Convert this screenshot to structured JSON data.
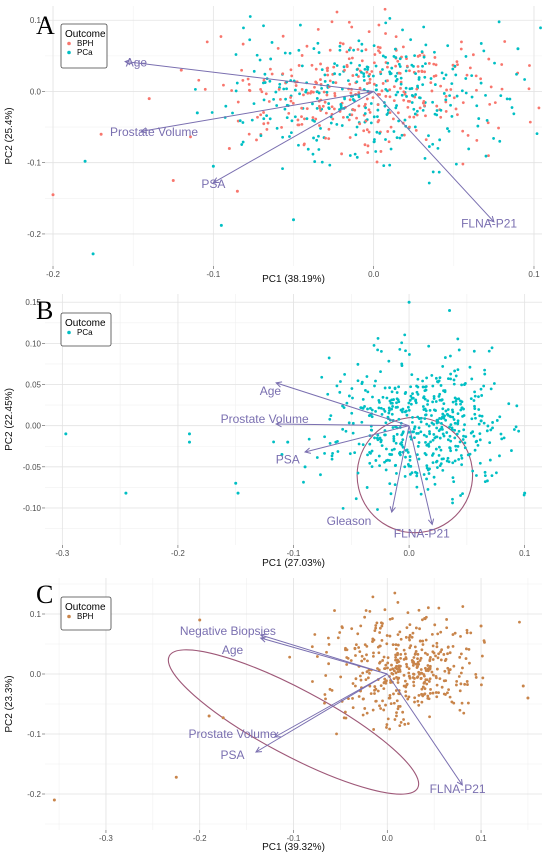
{
  "chart_data": [
    {
      "type": "scatter",
      "panel_label": "A",
      "xlabel": "PC1 (38.19%)",
      "ylabel": "PC2 (25.4%)",
      "xlim": [
        -0.205,
        0.105
      ],
      "ylim": [
        -0.245,
        0.12
      ],
      "xticks": [
        -0.2,
        -0.1,
        0.0,
        0.1
      ],
      "yticks": [
        -0.2,
        -0.1,
        0.0,
        0.1
      ],
      "xtick_labels": [
        "-0.2",
        "-0.1",
        "0.0",
        "0.1"
      ],
      "ytick_labels": [
        "-0.2",
        "-0.1",
        "0.0",
        "0.1"
      ],
      "grid": true,
      "legend": {
        "title": "Outcome",
        "placement": "top-left",
        "entries": [
          {
            "name": "BPH",
            "color": "#f8766d"
          },
          {
            "name": "PCa",
            "color": "#00bfc4"
          }
        ]
      },
      "cloud": {
        "cx": 0.0,
        "cy": 0.0,
        "sx": 0.045,
        "sy": 0.045,
        "n": 650
      },
      "series": [
        {
          "name": "BPH",
          "color": "#f8766d",
          "points": [
            [
              -0.2,
              -0.145
            ],
            [
              -0.125,
              -0.125
            ],
            [
              -0.085,
              -0.14
            ],
            [
              -0.14,
              -0.01
            ],
            [
              -0.17,
              -0.06
            ],
            [
              -0.09,
              -0.08
            ],
            [
              -0.12,
              0.03
            ]
          ]
        },
        {
          "name": "PCa",
          "color": "#00bfc4",
          "points": [
            [
              -0.18,
              -0.098
            ],
            [
              -0.175,
              -0.228
            ],
            [
              -0.1,
              -0.105
            ],
            [
              -0.095,
              -0.188
            ],
            [
              -0.05,
              -0.18
            ],
            [
              -0.11,
              -0.03
            ],
            [
              0.09,
              0.06
            ]
          ]
        }
      ],
      "vectors": [
        {
          "label": "Age",
          "x": -0.155,
          "y": 0.042,
          "lx": -0.148,
          "ly": 0.041
        },
        {
          "label": "Prostate Volume",
          "x": -0.145,
          "y": -0.056,
          "lx": -0.137,
          "ly": -0.057
        },
        {
          "label": "PSA",
          "x": -0.1,
          "y": -0.128,
          "lx": -0.1,
          "ly": -0.13
        },
        {
          "label": "FLNA-P21",
          "x": 0.075,
          "y": -0.183,
          "lx": 0.072,
          "ly": -0.185
        }
      ]
    },
    {
      "type": "scatter",
      "panel_label": "B",
      "xlabel": "PC1 (27.03%)",
      "ylabel": "PC2 (22.45%)",
      "xlim": [
        -0.315,
        0.115
      ],
      "ylim": [
        -0.145,
        0.16
      ],
      "xticks": [
        -0.3,
        -0.2,
        -0.1,
        0.0,
        0.1
      ],
      "yticks": [
        -0.1,
        -0.05,
        0.0,
        0.05,
        0.1,
        0.15
      ],
      "xtick_labels": [
        "-0.3",
        "-0.2",
        "-0.1",
        "0.0",
        "0.1"
      ],
      "ytick_labels": [
        "-0.10",
        "-0.05",
        "0.00",
        "0.05",
        "0.10",
        "0.15"
      ],
      "grid": true,
      "legend": {
        "title": "Outcome",
        "placement": "top-left",
        "entries": [
          {
            "name": "PCa",
            "color": "#00bfc4"
          }
        ]
      },
      "cloud": {
        "cx": 0.01,
        "cy": 0.0,
        "sx": 0.035,
        "sy": 0.04,
        "n": 520
      },
      "series": [
        {
          "name": "PCa",
          "color": "#00bfc4",
          "points": [
            [
              -0.297,
              -0.01
            ],
            [
              -0.245,
              -0.082
            ],
            [
              -0.19,
              -0.02
            ],
            [
              -0.19,
              -0.01
            ],
            [
              -0.15,
              -0.07
            ],
            [
              -0.148,
              -0.082
            ],
            [
              -0.11,
              -0.035
            ],
            [
              -0.105,
              -0.02
            ],
            [
              -0.09,
              -0.05
            ],
            [
              0.0,
              0.15
            ],
            [
              0.035,
              0.14
            ],
            [
              0.1,
              -0.082
            ]
          ]
        }
      ],
      "ellipse": {
        "cx": 0.005,
        "cy": -0.06,
        "rx": 0.05,
        "ry": 0.07,
        "angle": -35,
        "color": "#9e5878"
      },
      "vectors": [
        {
          "label": "Age",
          "x": -0.115,
          "y": 0.052,
          "lx": -0.12,
          "ly": 0.042
        },
        {
          "label": "Prostate Volume",
          "x": -0.115,
          "y": 0.002,
          "lx": -0.125,
          "ly": 0.008
        },
        {
          "label": "PSA",
          "x": -0.09,
          "y": -0.032,
          "lx": -0.105,
          "ly": -0.041
        },
        {
          "label": "Gleason",
          "x": -0.015,
          "y": -0.105,
          "lx": -0.052,
          "ly": -0.116
        },
        {
          "label": "FLNA-P21",
          "x": 0.02,
          "y": -0.12,
          "lx": 0.011,
          "ly": -0.131
        }
      ]
    },
    {
      "type": "scatter",
      "panel_label": "C",
      "xlabel": "PC1 (39.32%)",
      "ylabel": "PC2 (23.3%)",
      "xlim": [
        -0.365,
        0.165
      ],
      "ylim": [
        -0.26,
        0.16
      ],
      "xticks": [
        -0.3,
        -0.2,
        -0.1,
        0.0,
        0.1
      ],
      "yticks": [
        -0.2,
        -0.1,
        0.0,
        0.1
      ],
      "xtick_labels": [
        "-0.3",
        "-0.2",
        "-0.1",
        "0.0",
        "0.1"
      ],
      "ytick_labels": [
        "-0.2",
        "-0.1",
        "0.0",
        "0.1"
      ],
      "grid": true,
      "legend": {
        "title": "Outcome",
        "placement": "top-left",
        "entries": [
          {
            "name": "BPH",
            "color": "#c8844a"
          }
        ]
      },
      "cloud": {
        "cx": 0.02,
        "cy": 0.01,
        "sx": 0.04,
        "sy": 0.045,
        "n": 430
      },
      "series": [
        {
          "name": "BPH",
          "color": "#c8844a",
          "points": [
            [
              -0.355,
              -0.21
            ],
            [
              -0.225,
              -0.172
            ],
            [
              -0.19,
              -0.07
            ],
            [
              -0.175,
              -0.073
            ],
            [
              -0.2,
              0.09
            ],
            [
              0.145,
              -0.02
            ],
            [
              0.15,
              -0.04
            ],
            [
              0.1,
              0.08
            ]
          ]
        }
      ],
      "ellipse": {
        "cx": -0.1,
        "cy": -0.08,
        "rx": 0.15,
        "ry": 0.055,
        "angle": 28,
        "color": "#9e5878"
      },
      "vectors": [
        {
          "label": "Negative Biopsies",
          "x": -0.135,
          "y": 0.065,
          "lx": -0.17,
          "ly": 0.072
        },
        {
          "label": "Age",
          "x": -0.135,
          "y": 0.06,
          "lx": -0.165,
          "ly": 0.04
        },
        {
          "label": "Prostate Volume",
          "x": -0.12,
          "y": -0.105,
          "lx": -0.165,
          "ly": -0.1
        },
        {
          "label": "PSA",
          "x": -0.14,
          "y": -0.13,
          "lx": -0.165,
          "ly": -0.135
        },
        {
          "label": "FLNA-P21",
          "x": 0.08,
          "y": -0.185,
          "lx": 0.075,
          "ly": -0.192
        }
      ]
    }
  ]
}
